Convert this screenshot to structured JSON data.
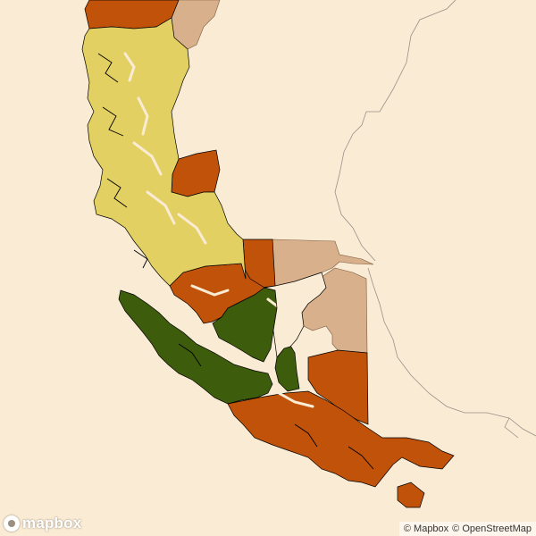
{
  "map": {
    "colors": {
      "background": "#faebd4",
      "tan": "#d8b08c",
      "orange": "#c0520a",
      "yellow": "#e2d062",
      "green": "#3d5c0c",
      "boundary": "#000000",
      "argentina_line": "#9a9088"
    }
  },
  "logo": {
    "text": "mapbox"
  },
  "attribution": {
    "mapbox": "© Mapbox",
    "osm": "© OpenStreetMap"
  }
}
